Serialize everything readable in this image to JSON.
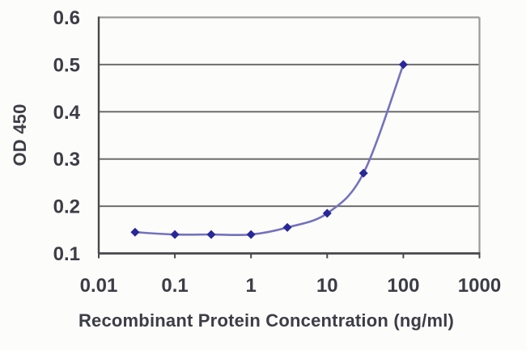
{
  "chart_data": {
    "type": "line",
    "title": "",
    "xlabel": "Recombinant Protein Concentration (ng/ml)",
    "ylabel": "OD 450",
    "x_scale": "log",
    "series": [
      {
        "x": [
          0.03,
          0.1,
          0.3,
          1,
          3,
          10,
          30,
          100
        ],
        "y": [
          0.145,
          0.14,
          0.14,
          0.14,
          0.155,
          0.185,
          0.27,
          0.5
        ]
      }
    ],
    "xlim": [
      0.01,
      1000
    ],
    "ylim": [
      0.1,
      0.6
    ],
    "x_ticks": [
      "0.01",
      "0.1",
      "1",
      "10",
      "100",
      "1000"
    ],
    "x_tick_values": [
      0.01,
      0.1,
      1,
      10,
      100,
      1000
    ],
    "y_ticks": [
      "0.1",
      "0.2",
      "0.3",
      "0.4",
      "0.5",
      "0.6"
    ],
    "y_tick_values": [
      0.1,
      0.2,
      0.3,
      0.4,
      0.5,
      0.6
    ],
    "grid": "horizontal",
    "legend": "none",
    "marker": "diamond",
    "line_smooth": true,
    "colors": {
      "line": "#7472bd",
      "marker": "#28289b",
      "grid": "#6d6d6d",
      "axis": "#48484c",
      "frame_light": "#9a9a9a",
      "text": "#3d3d46",
      "background": "#fcfcfb"
    }
  }
}
